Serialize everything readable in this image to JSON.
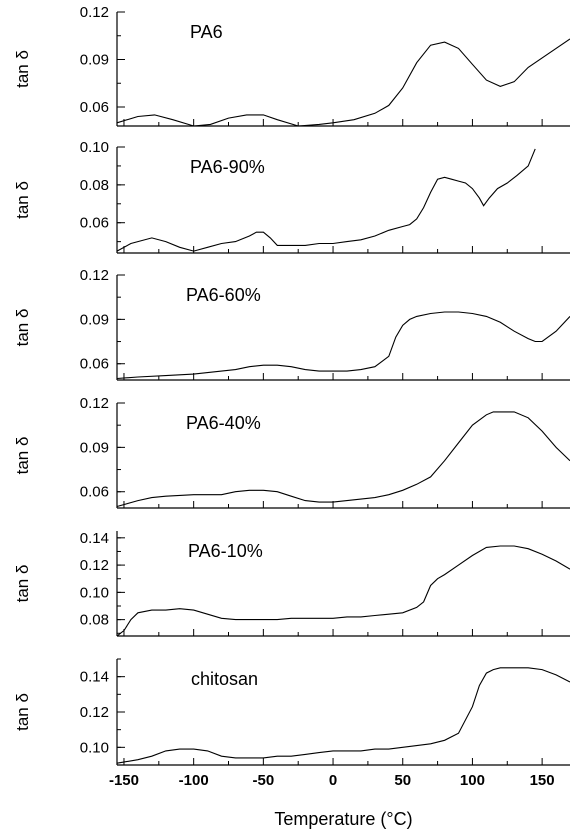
{
  "chart_data": {
    "type": "line",
    "xlabel": "Temperature (°C)",
    "xlim": [
      -155,
      170
    ],
    "xticks": [
      -150,
      -100,
      -50,
      0,
      50,
      100,
      150
    ],
    "ylabel": "tan δ",
    "panels": [
      {
        "label": "PA6",
        "ylim": [
          0.048,
          0.12
        ],
        "yticks": [
          "0.06",
          "0.09",
          "0.12"
        ],
        "series": [
          {
            "x": [
              -155,
              -140,
              -128,
              -115,
              -100,
              -88,
              -75,
              -62,
              -50,
              -40,
              -25,
              -10,
              0,
              15,
              30,
              40,
              50,
              60,
              70,
              80,
              90,
              100,
              110,
              120,
              130,
              140,
              155,
              170
            ],
            "y": [
              0.05,
              0.054,
              0.055,
              0.052,
              0.048,
              0.049,
              0.053,
              0.055,
              0.055,
              0.052,
              0.048,
              0.049,
              0.05,
              0.052,
              0.056,
              0.061,
              0.072,
              0.088,
              0.099,
              0.101,
              0.097,
              0.087,
              0.077,
              0.073,
              0.076,
              0.085,
              0.094,
              0.103
            ]
          }
        ]
      },
      {
        "label": "PA6-90%",
        "ylim": [
          0.044,
          0.1
        ],
        "yticks": [
          "0.06",
          "0.08",
          "0.10"
        ],
        "series": [
          {
            "x": [
              -155,
              -145,
              -130,
              -120,
              -110,
              -100,
              -90,
              -80,
              -70,
              -60,
              -55,
              -50,
              -45,
              -40,
              -30,
              -20,
              -10,
              0,
              10,
              20,
              30,
              40,
              50,
              55,
              60,
              65,
              70,
              75,
              80,
              85,
              90,
              95,
              100,
              105,
              108,
              112,
              118,
              125,
              132,
              140,
              145
            ],
            "y": [
              0.045,
              0.049,
              0.052,
              0.05,
              0.047,
              0.045,
              0.047,
              0.049,
              0.05,
              0.053,
              0.055,
              0.055,
              0.052,
              0.048,
              0.048,
              0.048,
              0.049,
              0.049,
              0.05,
              0.051,
              0.053,
              0.056,
              0.058,
              0.059,
              0.062,
              0.068,
              0.076,
              0.083,
              0.084,
              0.083,
              0.082,
              0.081,
              0.078,
              0.073,
              0.069,
              0.073,
              0.078,
              0.081,
              0.085,
              0.09,
              0.099
            ]
          }
        ]
      },
      {
        "label": "PA6-60%",
        "ylim": [
          0.049,
          0.12
        ],
        "yticks": [
          "0.06",
          "0.09",
          "0.12"
        ],
        "series": [
          {
            "x": [
              -155,
              -140,
              -120,
              -100,
              -90,
              -80,
              -70,
              -60,
              -50,
              -40,
              -30,
              -20,
              -10,
              0,
              10,
              20,
              30,
              40,
              45,
              50,
              55,
              60,
              70,
              80,
              90,
              100,
              110,
              120,
              130,
              140,
              145,
              150,
              160,
              170
            ],
            "y": [
              0.05,
              0.051,
              0.052,
              0.053,
              0.054,
              0.055,
              0.056,
              0.058,
              0.059,
              0.059,
              0.058,
              0.056,
              0.055,
              0.055,
              0.055,
              0.056,
              0.058,
              0.065,
              0.078,
              0.086,
              0.09,
              0.092,
              0.094,
              0.095,
              0.095,
              0.094,
              0.092,
              0.088,
              0.082,
              0.077,
              0.075,
              0.075,
              0.082,
              0.092
            ]
          }
        ]
      },
      {
        "label": "PA6-40%",
        "ylim": [
          0.049,
          0.12
        ],
        "yticks": [
          "0.06",
          "0.09",
          "0.12"
        ],
        "series": [
          {
            "x": [
              -155,
              -140,
              -130,
              -120,
              -100,
              -80,
              -70,
              -60,
              -50,
              -40,
              -30,
              -20,
              -10,
              0,
              10,
              20,
              30,
              40,
              50,
              60,
              70,
              80,
              90,
              100,
              110,
              115,
              120,
              130,
              140,
              150,
              160,
              170
            ],
            "y": [
              0.05,
              0.054,
              0.056,
              0.057,
              0.058,
              0.058,
              0.06,
              0.061,
              0.061,
              0.06,
              0.057,
              0.054,
              0.053,
              0.053,
              0.054,
              0.055,
              0.056,
              0.058,
              0.061,
              0.065,
              0.07,
              0.081,
              0.093,
              0.105,
              0.112,
              0.114,
              0.114,
              0.114,
              0.11,
              0.101,
              0.09,
              0.081
            ]
          }
        ]
      },
      {
        "label": "PA6-10%",
        "ylim": [
          0.068,
          0.145
        ],
        "yticks": [
          "0.08",
          "0.10",
          "0.12",
          "0.14"
        ],
        "series": [
          {
            "x": [
              -155,
              -150,
              -145,
              -140,
              -130,
              -120,
              -110,
              -100,
              -90,
              -80,
              -70,
              -60,
              -50,
              -40,
              -30,
              -20,
              -10,
              0,
              10,
              20,
              30,
              40,
              50,
              60,
              65,
              70,
              75,
              80,
              90,
              100,
              110,
              120,
              130,
              140,
              150,
              160,
              170
            ],
            "y": [
              0.068,
              0.072,
              0.08,
              0.085,
              0.087,
              0.087,
              0.088,
              0.087,
              0.084,
              0.081,
              0.08,
              0.08,
              0.08,
              0.08,
              0.081,
              0.081,
              0.081,
              0.081,
              0.082,
              0.082,
              0.083,
              0.084,
              0.085,
              0.089,
              0.093,
              0.105,
              0.11,
              0.113,
              0.12,
              0.127,
              0.133,
              0.134,
              0.134,
              0.132,
              0.128,
              0.123,
              0.117
            ]
          }
        ]
      },
      {
        "label": "chitosan",
        "ylim": [
          0.09,
          0.15
        ],
        "yticks": [
          "0.10",
          "0.12",
          "0.14"
        ],
        "series": [
          {
            "x": [
              -155,
              -140,
              -130,
              -120,
              -110,
              -100,
              -90,
              -80,
              -70,
              -60,
              -50,
              -40,
              -30,
              -20,
              -10,
              0,
              10,
              20,
              30,
              40,
              50,
              60,
              70,
              80,
              90,
              100,
              105,
              110,
              115,
              120,
              130,
              140,
              150,
              160,
              170
            ],
            "y": [
              0.091,
              0.093,
              0.095,
              0.098,
              0.099,
              0.099,
              0.098,
              0.095,
              0.094,
              0.094,
              0.094,
              0.095,
              0.095,
              0.096,
              0.097,
              0.098,
              0.098,
              0.098,
              0.099,
              0.099,
              0.1,
              0.101,
              0.102,
              0.104,
              0.108,
              0.123,
              0.135,
              0.142,
              0.144,
              0.145,
              0.145,
              0.145,
              0.144,
              0.141,
              0.137
            ]
          }
        ]
      }
    ]
  }
}
